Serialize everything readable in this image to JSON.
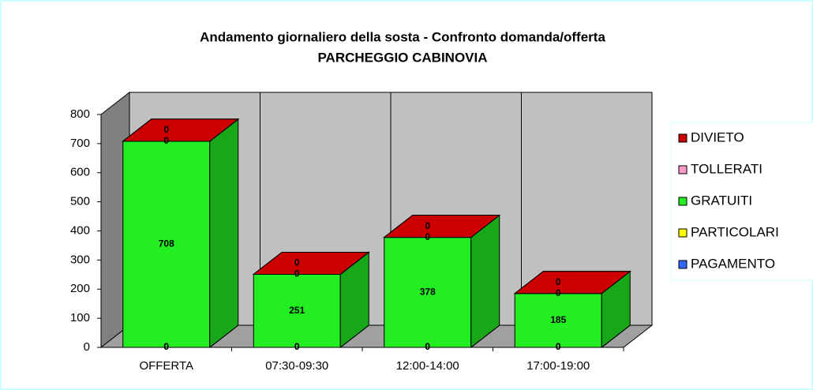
{
  "chart_data": {
    "type": "bar3d_stacked",
    "title": "Andamento giornaliero della sosta - Confronto domanda/offerta",
    "subtitle": "PARCHEGGIO CABINOVIA",
    "categories": [
      "OFFERTA",
      "07:30-09:30",
      "12:00-14:00",
      "17:00-19:00"
    ],
    "series": [
      {
        "name": "PAGAMENTO",
        "color": "#3366ff",
        "values": [
          0,
          0,
          0,
          0
        ]
      },
      {
        "name": "PARTICOLARI",
        "color": "#ffff00",
        "values": [
          0,
          0,
          0,
          0
        ]
      },
      {
        "name": "GRATUITI",
        "color": "#22ee22",
        "values": [
          708,
          251,
          378,
          185
        ]
      },
      {
        "name": "TOLLERATI",
        "color": "#ff99cc",
        "values": [
          0,
          0,
          0,
          0
        ]
      },
      {
        "name": "DIVIETO",
        "color": "#cc0000",
        "values": [
          0,
          0,
          0,
          0
        ]
      }
    ],
    "ylim": [
      0,
      800
    ],
    "yticks": [
      0,
      100,
      200,
      300,
      400,
      500,
      600,
      700,
      800
    ],
    "legend": "right"
  }
}
